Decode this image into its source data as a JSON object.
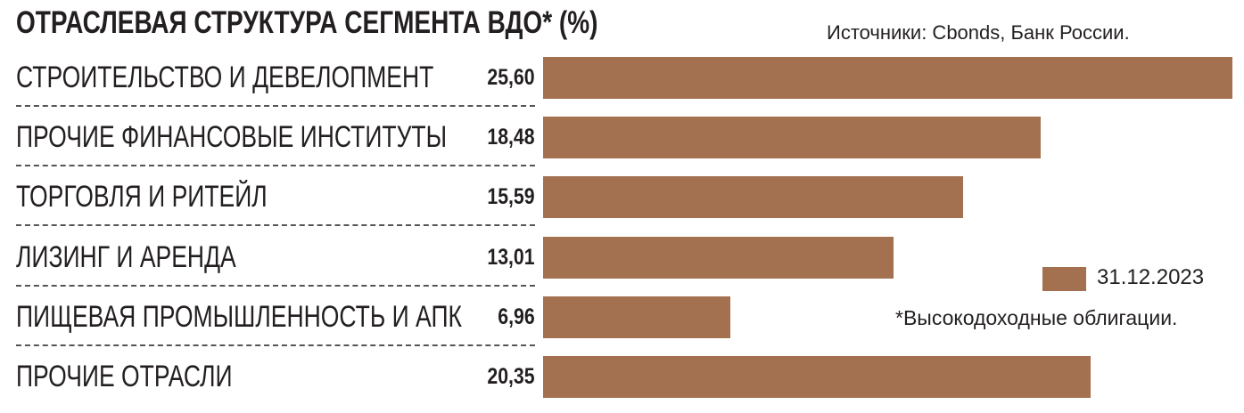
{
  "chart_data": {
    "type": "bar",
    "orientation": "horizontal",
    "title": "ОТРАСЛЕВАЯ СТРУКТУРА СЕГМЕНТА ВДО* (%)",
    "source": "Источники: Cbonds, Банк России.",
    "footnote": "*Высокодоходные облигации.",
    "categories": [
      "СТРОИТЕЛЬСТВО И ДЕВЕЛОПМЕНТ",
      "ПРОЧИЕ ФИНАНСОВЫЕ ИНСТИТУТЫ",
      "ТОРГОВЛЯ И РИТЕЙЛ",
      "ЛИЗИНГ И АРЕНДА",
      "ПИЩЕВАЯ ПРОМЫШЛЕННОСТЬ И АПК",
      "ПРОЧИЕ ОТРАСЛИ"
    ],
    "series": [
      {
        "name": "31.12.2023",
        "values": [
          25.6,
          18.48,
          15.59,
          13.01,
          6.96,
          20.35
        ],
        "color": "#a47150"
      }
    ],
    "value_labels": [
      "25,60",
      "18,48",
      "15,59",
      "13,01",
      "6,96",
      "20,35"
    ],
    "legend_position": "right",
    "grid": false
  }
}
